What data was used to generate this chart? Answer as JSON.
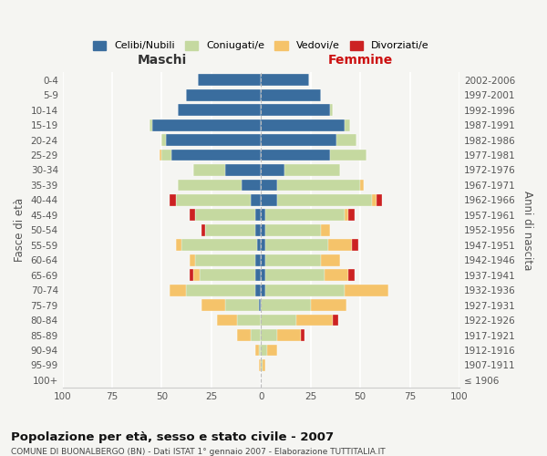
{
  "age_groups": [
    "100+",
    "95-99",
    "90-94",
    "85-89",
    "80-84",
    "75-79",
    "70-74",
    "65-69",
    "60-64",
    "55-59",
    "50-54",
    "45-49",
    "40-44",
    "35-39",
    "30-34",
    "25-29",
    "20-24",
    "15-19",
    "10-14",
    "5-9",
    "0-4"
  ],
  "birth_years": [
    "≤ 1906",
    "1907-1911",
    "1912-1916",
    "1917-1921",
    "1922-1926",
    "1927-1931",
    "1932-1936",
    "1937-1941",
    "1942-1946",
    "1947-1951",
    "1952-1956",
    "1957-1961",
    "1962-1966",
    "1967-1971",
    "1972-1976",
    "1977-1981",
    "1982-1986",
    "1987-1991",
    "1992-1996",
    "1997-2001",
    "2002-2006"
  ],
  "colors": {
    "celibe": "#3a6d9e",
    "coniugato": "#c5d9a0",
    "vedovo": "#f5c36a",
    "divorziato": "#cc2222"
  },
  "maschi": {
    "celibe": [
      0,
      0,
      0,
      0,
      0,
      1,
      3,
      3,
      3,
      2,
      3,
      3,
      5,
      10,
      18,
      45,
      48,
      55,
      42,
      38,
      32
    ],
    "coniugato": [
      0,
      0,
      1,
      5,
      12,
      17,
      35,
      28,
      30,
      38,
      25,
      30,
      38,
      32,
      16,
      5,
      2,
      1,
      0,
      0,
      0
    ],
    "vedovo": [
      0,
      1,
      2,
      7,
      10,
      12,
      8,
      3,
      3,
      3,
      0,
      0,
      0,
      0,
      0,
      1,
      0,
      0,
      0,
      0,
      0
    ],
    "divorziato": [
      0,
      0,
      0,
      0,
      0,
      0,
      0,
      2,
      0,
      0,
      2,
      3,
      3,
      0,
      0,
      0,
      0,
      0,
      0,
      0,
      0
    ]
  },
  "femmine": {
    "nubile": [
      0,
      0,
      0,
      0,
      0,
      0,
      2,
      2,
      2,
      2,
      2,
      2,
      8,
      8,
      12,
      35,
      38,
      42,
      35,
      30,
      24
    ],
    "coniugata": [
      0,
      1,
      3,
      8,
      18,
      25,
      40,
      30,
      28,
      32,
      28,
      40,
      48,
      42,
      28,
      18,
      10,
      3,
      1,
      0,
      0
    ],
    "vedova": [
      0,
      1,
      5,
      12,
      18,
      18,
      22,
      12,
      10,
      12,
      5,
      2,
      2,
      2,
      0,
      0,
      0,
      0,
      0,
      0,
      0
    ],
    "divorziata": [
      0,
      0,
      0,
      2,
      3,
      0,
      0,
      3,
      0,
      3,
      0,
      3,
      3,
      0,
      0,
      0,
      0,
      0,
      0,
      0,
      0
    ]
  },
  "xlim": 100,
  "title": "Popolazione per età, sesso e stato civile - 2007",
  "subtitle": "COMUNE DI BUONALBERGO (BN) - Dati ISTAT 1° gennaio 2007 - Elaborazione TUTTITALIA.IT",
  "ylabel_left": "Fasce di età",
  "ylabel_right": "Anni di nascita",
  "xlabel_left": "Maschi",
  "xlabel_right": "Femmine",
  "background_color": "#f5f5f2"
}
